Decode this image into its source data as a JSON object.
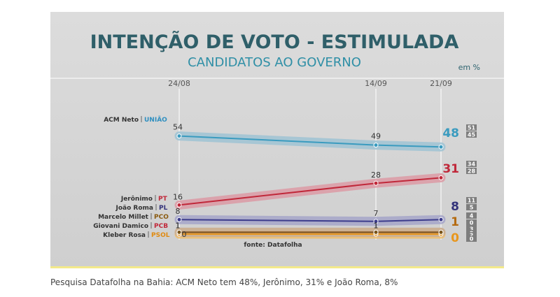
{
  "chart_data": {
    "type": "line",
    "title": "INTENÇÃO DE VOTO - ESTIMULADA",
    "subtitle": "CANDIDATOS AO GOVERNO",
    "unit": "em %",
    "x": [
      "24/08",
      "14/09",
      "21/09"
    ],
    "ylim": [
      0,
      60
    ],
    "source": "fonte: Datafolha",
    "series": [
      {
        "name": "ACM Neto",
        "party": "UNIÃO",
        "color": "#3a9bbf",
        "party_color": "#2f8fc0",
        "band": "#9fc3d3",
        "values": [
          54,
          49,
          48
        ],
        "labels": [
          "54",
          "49",
          "48"
        ],
        "margin": [
          "51",
          "45"
        ]
      },
      {
        "name": "Jerônimo",
        "party": "PT",
        "color": "#c0283a",
        "party_color": "#c0283a",
        "band": "#dc9aa5",
        "values": [
          16,
          28,
          31
        ],
        "labels": [
          "16",
          "28",
          "31"
        ],
        "margin": [
          "34",
          "28"
        ]
      },
      {
        "name": "João Roma",
        "party": "PL",
        "color": "#3c3c8c",
        "party_color": "#33337a",
        "band": "#a6a6c9",
        "values": [
          8,
          7,
          8
        ],
        "labels": [
          "8",
          "7",
          "8"
        ],
        "margin": [
          "11",
          "5"
        ]
      },
      {
        "name": "Marcelo Millet",
        "party": "PCO",
        "color": "#7a5418",
        "party_color": "#8a5a10",
        "band": "#c9b38f",
        "values": [
          1,
          1,
          1
        ],
        "labels": [
          "1",
          "1",
          "1"
        ],
        "margin": [
          "4",
          "0"
        ]
      },
      {
        "name": "Giovani Damico",
        "party": "PCB",
        "color": "#c0283a",
        "party_color": "#c0283a",
        "band": "#dba0a6",
        "values": [
          1,
          1,
          1
        ],
        "labels": [
          "1",
          "1",
          ""
        ],
        "margin": [
          "3",
          "0"
        ]
      },
      {
        "name": "Kleber Rosa",
        "party": "PSOL",
        "color": "#e8961c",
        "party_color": "#e08a10",
        "band": "#eebd6a",
        "values": [
          0,
          0,
          0
        ],
        "labels": [
          "0",
          "",
          "0"
        ],
        "margin": [
          "3",
          "0"
        ]
      }
    ]
  },
  "caption": "Pesquisa Datafolha na Bahia: ACM Neto tem 48%, Jerônimo, 31% e João Roma, 8%"
}
